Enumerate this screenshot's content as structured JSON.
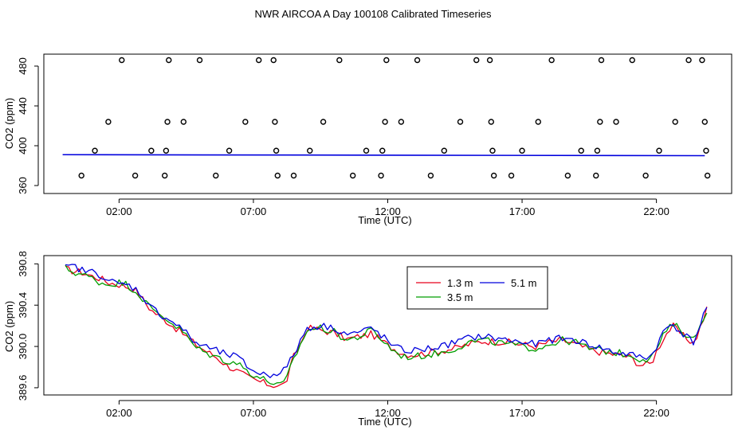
{
  "page_title": "NWR AIRCOA A  Day 100108  Calibrated Timeseries",
  "colors": {
    "red": "#e8001c",
    "green": "#009e00",
    "blue": "#0000dd"
  },
  "chart_data": [
    {
      "type": "scatter",
      "title": "",
      "xlabel": "Time (UTC)",
      "ylabel": "CO2 (ppm)",
      "xlim": [
        -0.8,
        24.8
      ],
      "ylim": [
        352,
        492
      ],
      "yticks": [
        360,
        400,
        440,
        480
      ],
      "xticks": [
        2,
        7,
        12,
        17,
        22
      ],
      "xtick_labels": [
        "02:00",
        "07:00",
        "12:00",
        "17:00",
        "22:00"
      ],
      "baseline": {
        "name": "CO2",
        "x": [
          -0.1,
          23.8
        ],
        "y": [
          391,
          390
        ]
      },
      "points": [
        {
          "x": 0.6,
          "y": 370
        },
        {
          "x": 1.1,
          "y": 395
        },
        {
          "x": 1.6,
          "y": 424
        },
        {
          "x": 2.1,
          "y": 486
        },
        {
          "x": 2.6,
          "y": 370
        },
        {
          "x": 3.2,
          "y": 395
        },
        {
          "x": 3.7,
          "y": 370
        },
        {
          "x": 3.75,
          "y": 395
        },
        {
          "x": 3.8,
          "y": 424
        },
        {
          "x": 3.85,
          "y": 486
        },
        {
          "x": 4.4,
          "y": 424
        },
        {
          "x": 5.0,
          "y": 486
        },
        {
          "x": 5.6,
          "y": 370
        },
        {
          "x": 6.1,
          "y": 395
        },
        {
          "x": 6.7,
          "y": 424
        },
        {
          "x": 7.2,
          "y": 486
        },
        {
          "x": 7.75,
          "y": 486
        },
        {
          "x": 7.8,
          "y": 424
        },
        {
          "x": 7.85,
          "y": 395
        },
        {
          "x": 7.9,
          "y": 370
        },
        {
          "x": 8.5,
          "y": 370
        },
        {
          "x": 9.1,
          "y": 395
        },
        {
          "x": 9.6,
          "y": 424
        },
        {
          "x": 10.2,
          "y": 486
        },
        {
          "x": 10.7,
          "y": 370
        },
        {
          "x": 11.2,
          "y": 395
        },
        {
          "x": 11.75,
          "y": 370
        },
        {
          "x": 11.8,
          "y": 395
        },
        {
          "x": 11.9,
          "y": 424
        },
        {
          "x": 11.95,
          "y": 486
        },
        {
          "x": 12.5,
          "y": 424
        },
        {
          "x": 13.1,
          "y": 486
        },
        {
          "x": 13.6,
          "y": 370
        },
        {
          "x": 14.1,
          "y": 395
        },
        {
          "x": 14.7,
          "y": 424
        },
        {
          "x": 15.3,
          "y": 486
        },
        {
          "x": 15.8,
          "y": 486
        },
        {
          "x": 15.85,
          "y": 424
        },
        {
          "x": 15.9,
          "y": 395
        },
        {
          "x": 15.95,
          "y": 370
        },
        {
          "x": 16.6,
          "y": 370
        },
        {
          "x": 17.0,
          "y": 395
        },
        {
          "x": 17.6,
          "y": 424
        },
        {
          "x": 18.1,
          "y": 486
        },
        {
          "x": 18.7,
          "y": 370
        },
        {
          "x": 19.2,
          "y": 395
        },
        {
          "x": 19.75,
          "y": 370
        },
        {
          "x": 19.8,
          "y": 395
        },
        {
          "x": 19.9,
          "y": 424
        },
        {
          "x": 19.95,
          "y": 486
        },
        {
          "x": 20.5,
          "y": 424
        },
        {
          "x": 21.1,
          "y": 486
        },
        {
          "x": 21.6,
          "y": 370
        },
        {
          "x": 22.1,
          "y": 395
        },
        {
          "x": 22.7,
          "y": 424
        },
        {
          "x": 23.2,
          "y": 486
        },
        {
          "x": 23.7,
          "y": 486
        },
        {
          "x": 23.8,
          "y": 424
        },
        {
          "x": 23.85,
          "y": 395
        },
        {
          "x": 23.9,
          "y": 370
        }
      ]
    },
    {
      "type": "line",
      "title": "",
      "xlabel": "Time (UTC)",
      "ylabel": "CO2 (ppm)",
      "xlim": [
        -0.8,
        24.8
      ],
      "ylim": [
        389.53,
        390.88
      ],
      "yticks": [
        389.6,
        390.0,
        390.4,
        390.8
      ],
      "ytick_labels": [
        "389.6",
        "390.0",
        "390.4",
        "390.8"
      ],
      "xticks": [
        2,
        7,
        12,
        17,
        22
      ],
      "xtick_labels": [
        "02:00",
        "07:00",
        "12:00",
        "17:00",
        "22:00"
      ],
      "legend": {
        "placement": "top-center"
      },
      "series": [
        {
          "name": "1.3 m",
          "color": "#e8001c",
          "knots": [
            [
              0.0,
              390.75
            ],
            [
              0.3,
              390.73
            ],
            [
              0.6,
              390.72
            ],
            [
              1.0,
              390.68
            ],
            [
              1.3,
              390.66
            ],
            [
              1.6,
              390.62
            ],
            [
              2.0,
              390.6
            ],
            [
              2.3,
              390.58
            ],
            [
              2.6,
              390.55
            ],
            [
              2.9,
              390.45
            ],
            [
              3.2,
              390.35
            ],
            [
              3.6,
              390.28
            ],
            [
              4.0,
              390.2
            ],
            [
              4.4,
              390.12
            ],
            [
              4.8,
              390.03
            ],
            [
              5.2,
              389.96
            ],
            [
              5.6,
              389.9
            ],
            [
              6.0,
              389.82
            ],
            [
              6.4,
              389.76
            ],
            [
              6.8,
              389.7
            ],
            [
              7.2,
              389.66
            ],
            [
              7.6,
              389.63
            ],
            [
              8.0,
              389.62
            ],
            [
              8.2,
              389.64
            ],
            [
              8.5,
              389.9
            ],
            [
              8.8,
              390.05
            ],
            [
              9.0,
              390.18
            ],
            [
              9.5,
              390.16
            ],
            [
              10.0,
              390.13
            ],
            [
              10.5,
              390.07
            ],
            [
              11.0,
              390.1
            ],
            [
              11.4,
              390.12
            ],
            [
              11.8,
              390.05
            ],
            [
              12.2,
              389.98
            ],
            [
              12.6,
              389.93
            ],
            [
              13.0,
              389.92
            ],
            [
              13.5,
              389.94
            ],
            [
              14.0,
              389.96
            ],
            [
              14.5,
              389.98
            ],
            [
              15.0,
              390.02
            ],
            [
              15.5,
              390.05
            ],
            [
              16.0,
              390.05
            ],
            [
              16.5,
              390.04
            ],
            [
              17.0,
              390.02
            ],
            [
              17.5,
              390.0
            ],
            [
              18.0,
              390.04
            ],
            [
              18.5,
              390.06
            ],
            [
              19.0,
              390.02
            ],
            [
              19.5,
              389.97
            ],
            [
              20.0,
              389.94
            ],
            [
              20.5,
              389.92
            ],
            [
              21.0,
              389.9
            ],
            [
              21.4,
              389.82
            ],
            [
              21.8,
              389.83
            ],
            [
              22.0,
              389.95
            ],
            [
              22.3,
              390.1
            ],
            [
              22.6,
              390.2
            ],
            [
              23.0,
              390.1
            ],
            [
              23.4,
              390.03
            ],
            [
              23.8,
              390.3
            ],
            [
              23.9,
              390.38
            ]
          ]
        },
        {
          "name": "3.5 m",
          "color": "#009e00",
          "knots": [
            [
              0.0,
              390.76
            ],
            [
              0.3,
              390.72
            ],
            [
              0.6,
              390.7
            ],
            [
              1.0,
              390.66
            ],
            [
              1.3,
              390.62
            ],
            [
              1.6,
              390.6
            ],
            [
              2.0,
              390.62
            ],
            [
              2.3,
              390.6
            ],
            [
              2.6,
              390.54
            ],
            [
              2.9,
              390.46
            ],
            [
              3.2,
              390.36
            ],
            [
              3.6,
              390.3
            ],
            [
              4.0,
              390.22
            ],
            [
              4.4,
              390.14
            ],
            [
              4.8,
              390.0
            ],
            [
              5.2,
              389.94
            ],
            [
              5.6,
              389.9
            ],
            [
              6.0,
              389.86
            ],
            [
              6.4,
              389.84
            ],
            [
              6.8,
              389.76
            ],
            [
              7.2,
              389.7
            ],
            [
              7.6,
              389.66
            ],
            [
              8.0,
              389.62
            ],
            [
              8.2,
              389.66
            ],
            [
              8.5,
              389.88
            ],
            [
              8.8,
              390.04
            ],
            [
              9.0,
              390.16
            ],
            [
              9.5,
              390.18
            ],
            [
              10.0,
              390.14
            ],
            [
              10.5,
              390.06
            ],
            [
              11.0,
              390.1
            ],
            [
              11.4,
              390.16
            ],
            [
              11.8,
              390.06
            ],
            [
              12.2,
              389.96
            ],
            [
              12.6,
              389.9
            ],
            [
              13.0,
              389.9
            ],
            [
              13.5,
              389.92
            ],
            [
              14.0,
              389.94
            ],
            [
              14.5,
              389.98
            ],
            [
              15.0,
              390.04
            ],
            [
              15.5,
              390.06
            ],
            [
              16.0,
              390.04
            ],
            [
              16.5,
              390.02
            ],
            [
              17.0,
              390.0
            ],
            [
              17.5,
              389.98
            ],
            [
              18.0,
              390.02
            ],
            [
              18.5,
              390.06
            ],
            [
              19.0,
              390.04
            ],
            [
              19.5,
              389.98
            ],
            [
              20.0,
              389.96
            ],
            [
              20.5,
              389.94
            ],
            [
              21.0,
              389.92
            ],
            [
              21.4,
              389.88
            ],
            [
              21.8,
              389.88
            ],
            [
              22.0,
              389.98
            ],
            [
              22.3,
              390.12
            ],
            [
              22.6,
              390.22
            ],
            [
              23.0,
              390.14
            ],
            [
              23.4,
              390.06
            ],
            [
              23.8,
              390.32
            ],
            [
              23.9,
              390.36
            ]
          ]
        },
        {
          "name": "5.1 m",
          "color": "#0000dd",
          "knots": [
            [
              0.0,
              390.76
            ],
            [
              0.3,
              390.78
            ],
            [
              0.6,
              390.74
            ],
            [
              1.0,
              390.72
            ],
            [
              1.3,
              390.7
            ],
            [
              1.6,
              390.64
            ],
            [
              2.0,
              390.6
            ],
            [
              2.3,
              390.6
            ],
            [
              2.6,
              390.56
            ],
            [
              2.9,
              390.48
            ],
            [
              3.2,
              390.38
            ],
            [
              3.6,
              390.3
            ],
            [
              4.0,
              390.24
            ],
            [
              4.4,
              390.16
            ],
            [
              4.8,
              390.04
            ],
            [
              5.2,
              390.0
            ],
            [
              5.6,
              389.96
            ],
            [
              6.0,
              389.92
            ],
            [
              6.4,
              389.9
            ],
            [
              6.8,
              389.8
            ],
            [
              7.2,
              389.74
            ],
            [
              7.6,
              389.72
            ],
            [
              8.0,
              389.76
            ],
            [
              8.2,
              389.78
            ],
            [
              8.5,
              389.92
            ],
            [
              8.8,
              390.08
            ],
            [
              9.0,
              390.18
            ],
            [
              9.5,
              390.2
            ],
            [
              10.0,
              390.18
            ],
            [
              10.5,
              390.12
            ],
            [
              11.0,
              390.14
            ],
            [
              11.4,
              390.18
            ],
            [
              11.8,
              390.1
            ],
            [
              12.2,
              390.0
            ],
            [
              12.6,
              389.96
            ],
            [
              13.0,
              389.96
            ],
            [
              13.5,
              389.98
            ],
            [
              14.0,
              390.0
            ],
            [
              14.5,
              390.04
            ],
            [
              15.0,
              390.08
            ],
            [
              15.5,
              390.1
            ],
            [
              16.0,
              390.08
            ],
            [
              16.5,
              390.06
            ],
            [
              17.0,
              390.04
            ],
            [
              17.5,
              390.02
            ],
            [
              18.0,
              390.06
            ],
            [
              18.5,
              390.08
            ],
            [
              19.0,
              390.06
            ],
            [
              19.5,
              390.02
            ],
            [
              20.0,
              389.98
            ],
            [
              20.5,
              389.94
            ],
            [
              21.0,
              389.92
            ],
            [
              21.4,
              389.9
            ],
            [
              21.8,
              389.9
            ],
            [
              22.0,
              390.0
            ],
            [
              22.3,
              390.16
            ],
            [
              22.6,
              390.22
            ],
            [
              23.0,
              390.12
            ],
            [
              23.4,
              390.04
            ],
            [
              23.8,
              390.34
            ],
            [
              23.9,
              390.4
            ]
          ]
        }
      ]
    }
  ]
}
